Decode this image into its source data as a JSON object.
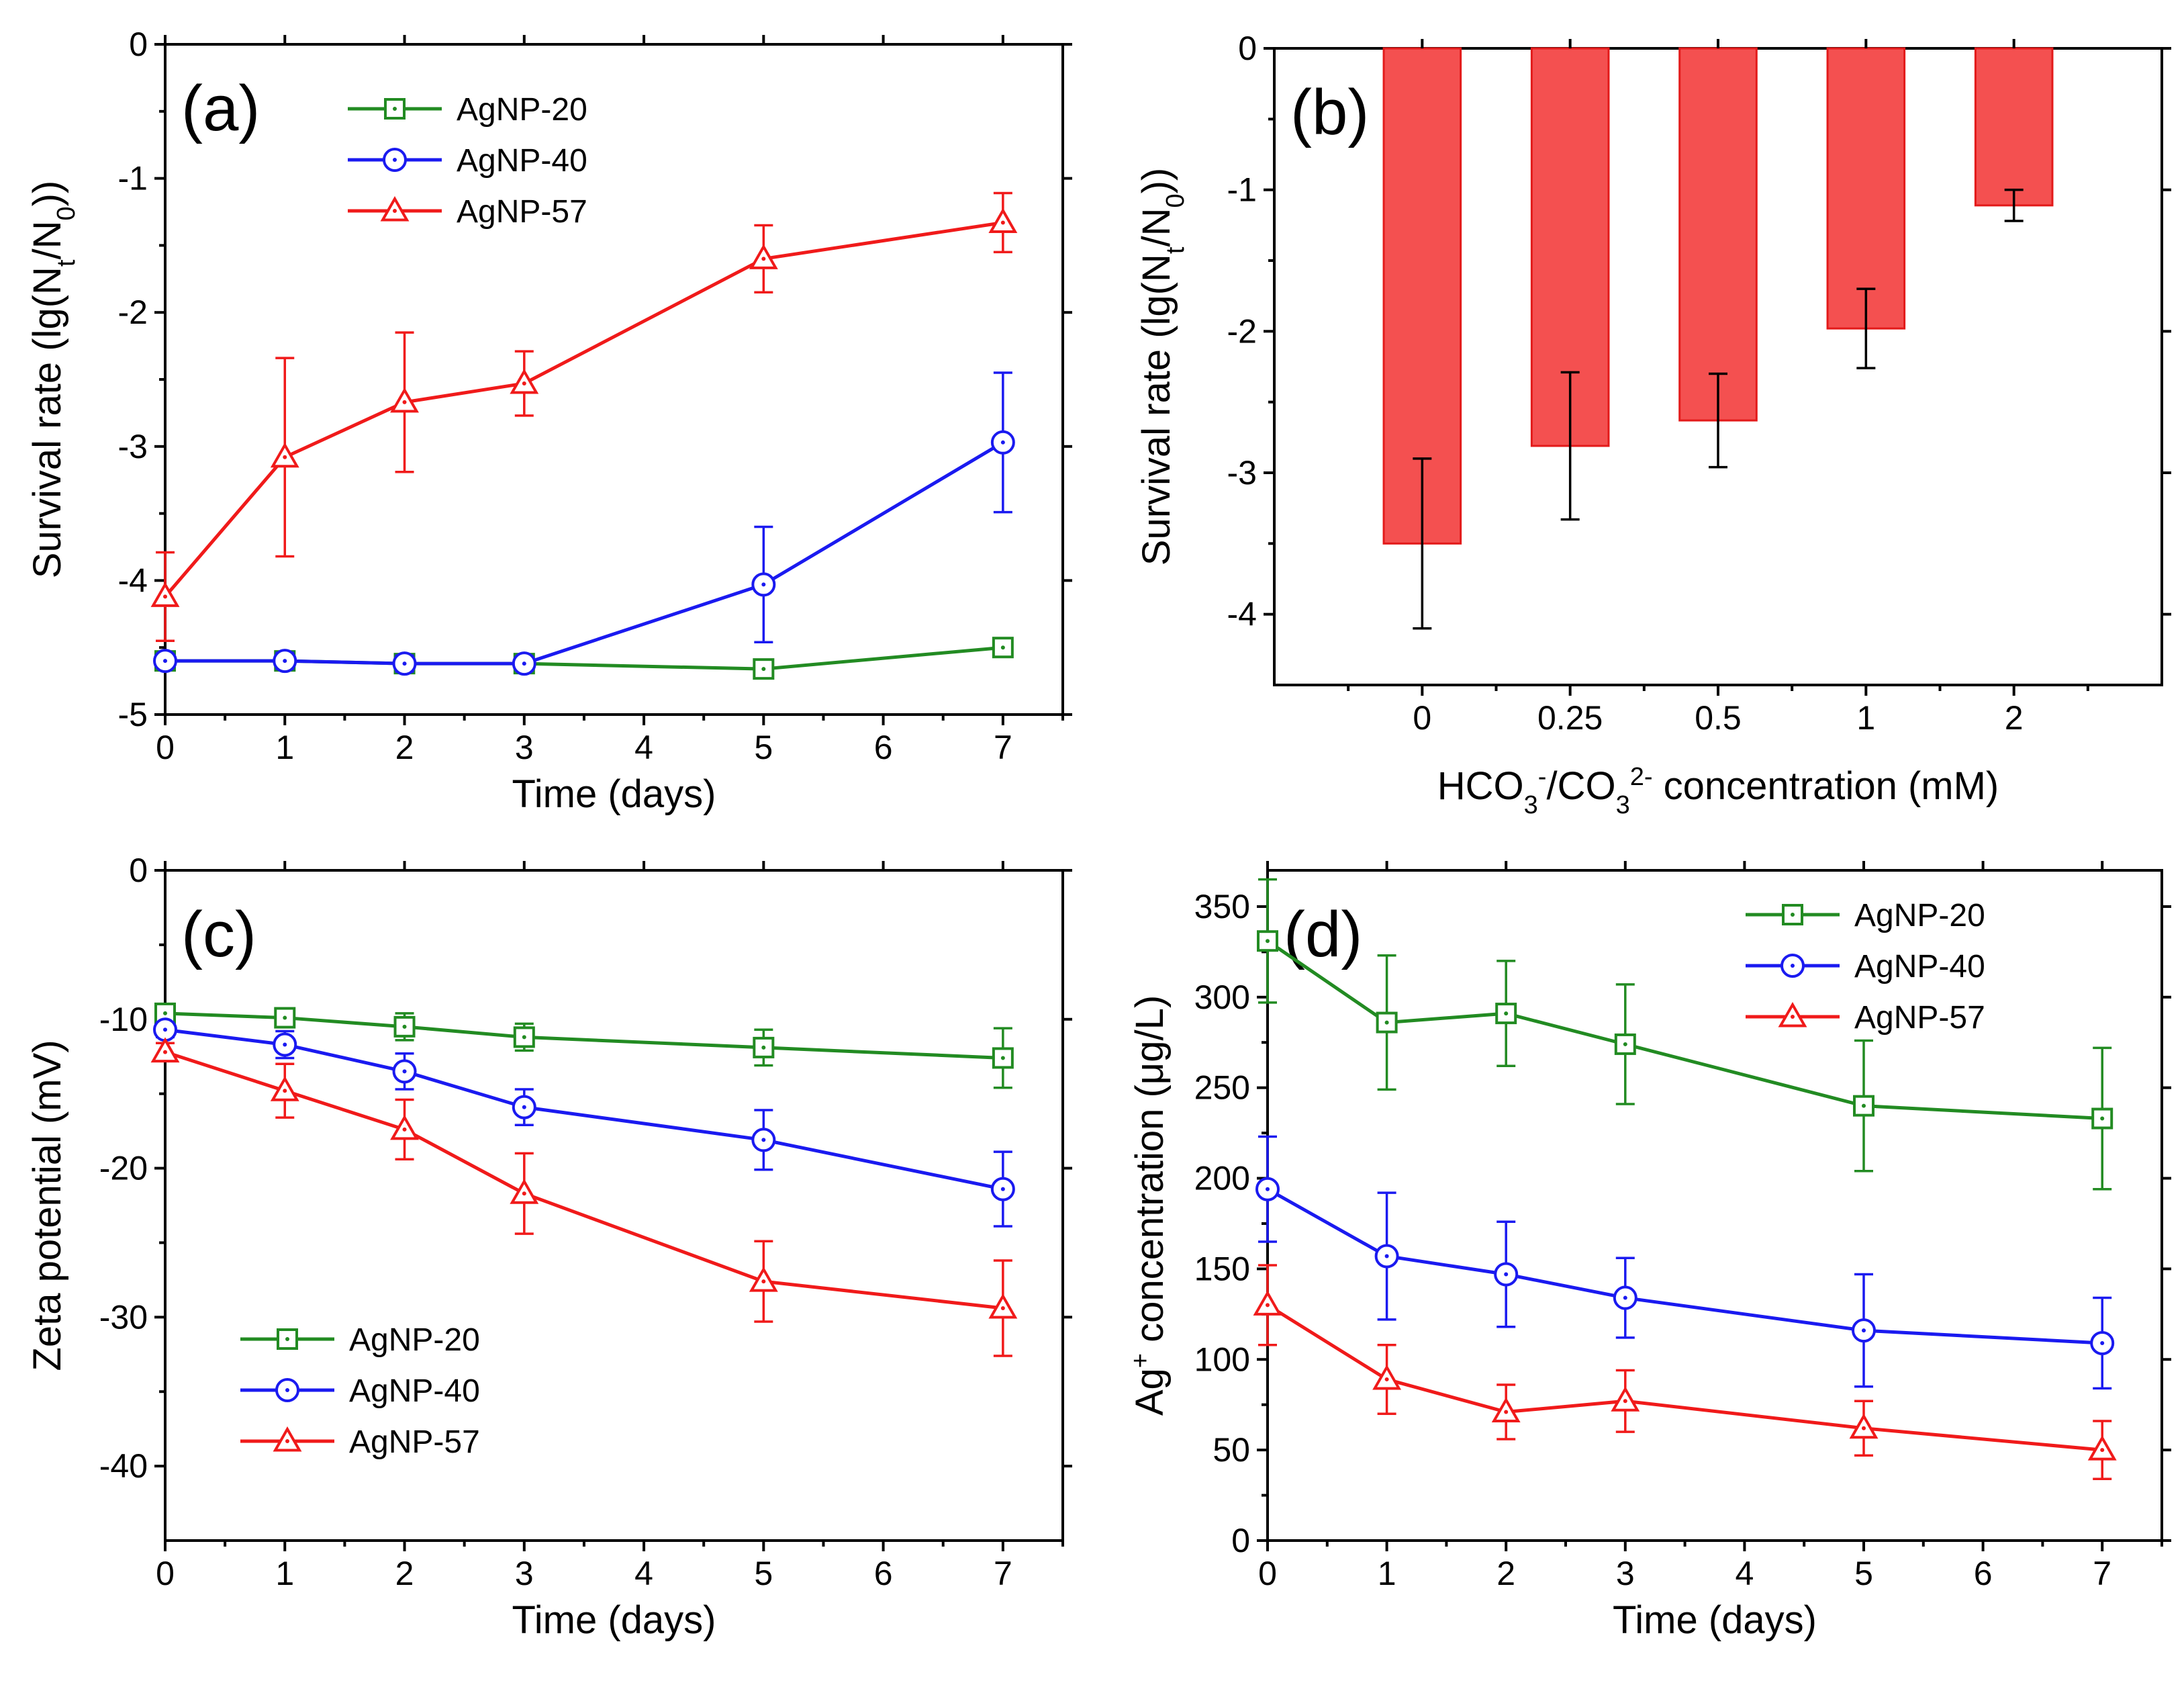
{
  "colors": {
    "green": "#228B22",
    "blue": "#1A1AF0",
    "red": "#F01A1A",
    "bar_fill": "#F45050",
    "bar_stroke": "#E31A1A"
  },
  "chart_data": [
    {
      "panel": "(a)",
      "type": "line",
      "xlabel": "Time (days)",
      "ylabel_parts": [
        "Survival rate (lg(N",
        "t",
        "/N",
        "0",
        "))"
      ],
      "x": [
        0,
        1,
        2,
        3,
        5,
        7
      ],
      "xlim": [
        0,
        7.5
      ],
      "ylim": [
        -5,
        0
      ],
      "xticks": [
        "0",
        "1",
        "2",
        "3",
        "4",
        "5",
        "6",
        "7"
      ],
      "yticks": [
        "0",
        "-1",
        "-2",
        "-3",
        "-4",
        "-5"
      ],
      "legend_position": "top-center",
      "series": [
        {
          "name": "AgNP-20",
          "marker": "square",
          "color": "green",
          "x": [
            0,
            1,
            2,
            3,
            5,
            7
          ],
          "values": [
            -4.6,
            -4.6,
            -4.62,
            -4.62,
            -4.66,
            -4.5
          ],
          "errors": [
            0.04,
            0.04,
            0.04,
            0.04,
            0.04,
            0.05
          ]
        },
        {
          "name": "AgNP-40",
          "marker": "circle",
          "color": "blue",
          "x": [
            0,
            1,
            2,
            3,
            5,
            7
          ],
          "values": [
            -4.6,
            -4.6,
            -4.62,
            -4.62,
            -4.03,
            -2.97
          ],
          "errors": [
            0.05,
            0.06,
            0.06,
            0.05,
            0.43,
            0.52
          ]
        },
        {
          "name": "AgNP-57",
          "marker": "triangle",
          "color": "red",
          "x": [
            0,
            1,
            2,
            3,
            5,
            7
          ],
          "values": [
            -4.12,
            -3.08,
            -2.67,
            -2.53,
            -1.6,
            -1.33
          ],
          "errors": [
            0.33,
            0.74,
            0.52,
            0.24,
            0.25,
            0.22
          ]
        }
      ]
    },
    {
      "panel": "(b)",
      "type": "bar",
      "xlabel_parts": [
        "HCO",
        "3",
        "-",
        "/CO",
        "3",
        "2-",
        " concentration (mM)"
      ],
      "ylabel_parts": [
        "Survival rate (lg(N",
        "t",
        "/N",
        "0",
        "))"
      ],
      "categories": [
        "0",
        "0.25",
        "0.5",
        "1",
        "2"
      ],
      "values": [
        -3.5,
        -2.81,
        -2.63,
        -1.98,
        -1.11
      ],
      "errors": [
        0.6,
        0.52,
        0.33,
        0.28,
        0.11
      ],
      "ylim": [
        -4.5,
        0
      ],
      "yticks": [
        "0",
        "-1",
        "-2",
        "-3",
        "-4"
      ]
    },
    {
      "panel": "(c)",
      "type": "line",
      "xlabel": "Time (days)",
      "ylabel": "Zeta potential (mV)",
      "xlim": [
        0,
        7.5
      ],
      "ylim": [
        -45,
        0
      ],
      "xticks": [
        "0",
        "1",
        "2",
        "3",
        "4",
        "5",
        "6",
        "7"
      ],
      "yticks": [
        "0",
        "-10",
        "-20",
        "-30",
        "-40"
      ],
      "legend_position": "bottom-left",
      "series": [
        {
          "name": "AgNP-20",
          "marker": "square",
          "color": "green",
          "x": [
            0,
            1,
            2,
            3,
            5,
            7
          ],
          "values": [
            -9.6,
            -9.9,
            -10.5,
            -11.2,
            -11.9,
            -12.6
          ],
          "errors": [
            0.4,
            0.5,
            0.9,
            0.9,
            1.2,
            2.0
          ]
        },
        {
          "name": "AgNP-40",
          "marker": "circle",
          "color": "blue",
          "x": [
            0,
            1,
            2,
            3,
            5,
            7
          ],
          "values": [
            -10.7,
            -11.7,
            -13.5,
            -15.9,
            -18.1,
            -21.4
          ],
          "errors": [
            0.5,
            0.9,
            1.2,
            1.2,
            2.0,
            2.5
          ]
        },
        {
          "name": "AgNP-57",
          "marker": "triangle",
          "color": "red",
          "x": [
            0,
            1,
            2,
            3,
            5,
            7
          ],
          "values": [
            -12.2,
            -14.8,
            -17.4,
            -21.7,
            -27.6,
            -29.4
          ],
          "errors": [
            0.6,
            1.8,
            2.0,
            2.7,
            2.7,
            3.2
          ]
        }
      ]
    },
    {
      "panel": "(d)",
      "type": "line",
      "xlabel": "Time (days)",
      "ylabel_parts": [
        "Ag",
        "+",
        " concentration (μg/L)"
      ],
      "xlim": [
        0,
        7.5
      ],
      "ylim": [
        0,
        370
      ],
      "xticks": [
        "0",
        "1",
        "2",
        "3",
        "4",
        "5",
        "6",
        "7"
      ],
      "yticks": [
        "0",
        "50",
        "100",
        "150",
        "200",
        "250",
        "300",
        "350"
      ],
      "legend_position": "top-right",
      "series": [
        {
          "name": "AgNP-20",
          "marker": "square",
          "color": "green",
          "x": [
            0,
            1,
            2,
            3,
            5,
            7
          ],
          "values": [
            331,
            286,
            291,
            274,
            240,
            233
          ],
          "errors": [
            34,
            37,
            29,
            33,
            36,
            39
          ]
        },
        {
          "name": "AgNP-40",
          "marker": "circle",
          "color": "blue",
          "x": [
            0,
            1,
            2,
            3,
            5,
            7
          ],
          "values": [
            194,
            157,
            147,
            134,
            116,
            109
          ],
          "errors": [
            29,
            35,
            29,
            22,
            31,
            25
          ]
        },
        {
          "name": "AgNP-57",
          "marker": "triangle",
          "color": "red",
          "x": [
            0,
            1,
            2,
            3,
            5,
            7
          ],
          "values": [
            130,
            89,
            71,
            77,
            62,
            50
          ],
          "errors": [
            22,
            19,
            15,
            17,
            15,
            16
          ]
        }
      ]
    }
  ]
}
